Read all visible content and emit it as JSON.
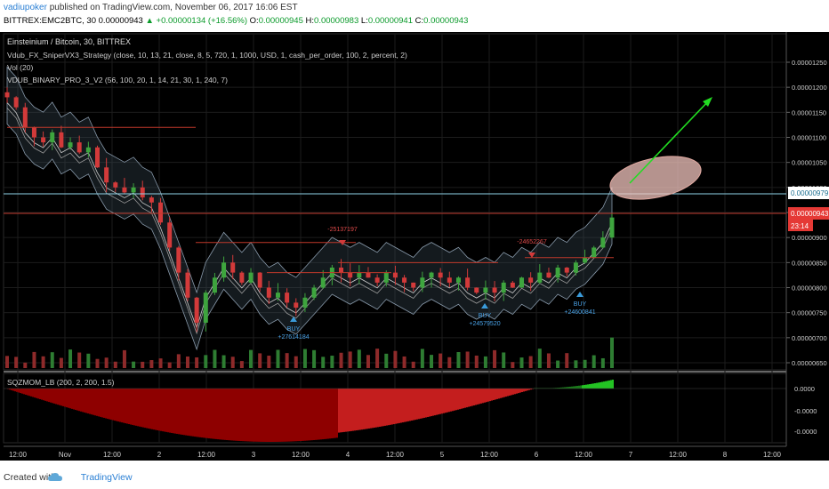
{
  "header": {
    "user": "vadiupoker",
    "published_text": " published on TradingView.com, November 06, 2017 16:06 EST"
  },
  "quote": {
    "symbol": "BITTREX:EMC2BTC, 30",
    "open": "0.00000943",
    "change": "+0.00000134 (+16.56%)",
    "o_label": "O:",
    "o": "0.00000945",
    "h_label": "H:",
    "h": "0.00000983",
    "l_label": "L:",
    "l": "0.00000941",
    "c_label": "C:",
    "c": "0.00000943"
  },
  "legend": {
    "title": "Einsteinium / Bitcoin, 30, BITTREX",
    "strategy": "Vdub_FX_SniperVX3_Strategy (close, 10, 13, 21, close, 8, 5, 720, 1, 1000, USD, 1, cash_per_order, 100, 2, percent, 2)",
    "vol": "Vol (20)",
    "binary": "VDUB_BINARY_PRO_3_V2 (56, 100, 20, 1, 14, 21, 30, 1, 240, 7)",
    "sqzmom": "SQZMOM_LB (200, 2, 200, 1.5)"
  },
  "price_axis": [
    "0.00001250",
    "0.00001200",
    "0.00001150",
    "0.00001100",
    "0.00001050",
    "0.00001000",
    "0.00000950",
    "0.00000900",
    "0.00000850",
    "0.00000800",
    "0.00000750",
    "0.00000700",
    "0.00000650"
  ],
  "price_tags": {
    "cyan": "0.00000979",
    "red": "0.00000943",
    "timer": "23:14"
  },
  "osc_axis": [
    "0.0000",
    "-0.0000",
    "-0.0000"
  ],
  "time_axis": [
    "12:00",
    "Nov",
    "12:00",
    "2",
    "12:00",
    "3",
    "12:00",
    "4",
    "12:00",
    "5",
    "12:00",
    "6",
    "12:00",
    "7",
    "12:00",
    "8",
    "12:00"
  ],
  "signals": {
    "buy": "BUY",
    "buy1_amount": "+27614184",
    "buy2_amount": "+24579520",
    "buy3_amount": "+24600841",
    "sell1_amount": "-25137197",
    "sell2_amount": "-24652267"
  },
  "footer": {
    "created": "Created with",
    "brand": "TradingView"
  },
  "chart_data": {
    "type": "candlestick",
    "title": "Einsteinium / Bitcoin, 30, BITTREX",
    "x_ticks": [
      "12:00",
      "Nov",
      "12:00",
      "2",
      "12:00",
      "3",
      "12:00",
      "4",
      "12:00",
      "5",
      "12:00",
      "6",
      "12:00",
      "7",
      "12:00",
      "8",
      "12:00"
    ],
    "ylim": [
      6.2e-06,
      1.29e-05
    ],
    "closes": [
      1.18e-05,
      1.16e-05,
      1.12e-05,
      1.1e-05,
      1.09e-05,
      1.11e-05,
      1.08e-05,
      1.09e-05,
      1.07e-05,
      1.08e-05,
      1.04e-05,
      1.01e-05,
      1e-05,
      9.9e-06,
      1e-05,
      9.8e-06,
      9.7e-06,
      9.3e-06,
      8.8e-06,
      8.3e-06,
      7.8e-06,
      7.3e-06,
      7.9e-06,
      8.2e-06,
      8.5e-06,
      8.3e-06,
      8.1e-06,
      8.3e-06,
      8e-06,
      7.8e-06,
      7.9e-06,
      7.7e-06,
      7.6e-06,
      7.8e-06,
      8e-06,
      8.2e-06,
      8.4e-06,
      8.3e-06,
      8.2e-06,
      8.3e-06,
      8.2e-06,
      8.1e-06,
      8.3e-06,
      8.2e-06,
      8.1e-06,
      8e-06,
      8.2e-06,
      8.3e-06,
      8.2e-06,
      8.1e-06,
      8.2e-06,
      8e-06,
      7.9e-06,
      8e-06,
      7.9e-06,
      8.1e-06,
      8e-06,
      8.2e-06,
      8.1e-06,
      8.3e-06,
      8.2e-06,
      8.4e-06,
      8.3e-06,
      8.5e-06,
      8.6e-06,
      8.8e-06,
      9e-06,
      9.4e-06
    ],
    "price_tag_last": 9.43e-06,
    "price_tag_high": 9.79e-06,
    "squeeze_momentum": "negative trough centered near day 4, turning positive at the last bars",
    "annotation": "green arrow pointing up from ellipse near 0.0000098 toward 0.0000117"
  }
}
